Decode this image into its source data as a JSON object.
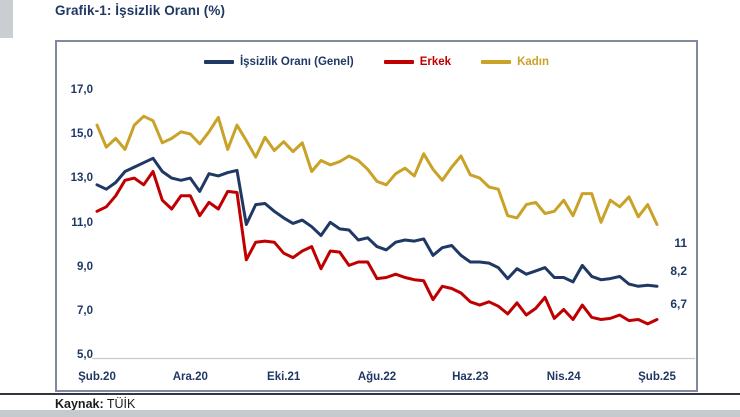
{
  "title": "Grafik-1: İşsizlik Oranı (%)",
  "source": {
    "label": "Kaynak:",
    "value": "TÜİK"
  },
  "colors": {
    "general": "#1F3864",
    "male": "#C00000",
    "female": "#C9A227",
    "axis_text": "#1F3864",
    "box_border": "#7f8b9c",
    "baseline": "#c9c9c9"
  },
  "chart_data": {
    "type": "line",
    "title": "Grafik-1: İşsizlik Oranı (%)",
    "frequency": "monthly",
    "x_tick_labels": [
      "Şub.20",
      "Ara.20",
      "Eki.21",
      "Ağu.22",
      "Haz.23",
      "Nis.24",
      "Şub.25"
    ],
    "x_tick_interval_points": 10,
    "y_tick_labels": [
      "17,0",
      "15,0",
      "13,0",
      "11,0",
      "9,0",
      "7,0",
      "5,0"
    ],
    "ylim": [
      5,
      17
    ],
    "grid": false,
    "legend_position": "top",
    "series": [
      {
        "name": "İşsizlik Oranı (Genel)",
        "color": "#1F3864",
        "end_label": "8,2",
        "values": [
          12.8,
          12.6,
          12.9,
          13.4,
          13.6,
          13.8,
          14.0,
          13.4,
          13.1,
          13.0,
          13.1,
          12.5,
          13.3,
          13.2,
          13.35,
          13.45,
          11.0,
          11.9,
          11.95,
          11.6,
          11.3,
          11.05,
          11.2,
          10.9,
          10.5,
          11.1,
          10.8,
          10.75,
          10.3,
          10.4,
          10.0,
          9.85,
          10.2,
          10.3,
          10.25,
          10.35,
          9.6,
          9.95,
          10.05,
          9.6,
          9.3,
          9.3,
          9.25,
          9.05,
          8.55,
          9.0,
          8.75,
          8.9,
          9.05,
          8.6,
          8.6,
          8.4,
          9.15,
          8.65,
          8.5,
          8.55,
          8.65,
          8.3,
          8.2,
          8.25,
          8.2
        ]
      },
      {
        "name": "Erkek",
        "color": "#C00000",
        "end_label": "6,7",
        "values": [
          11.6,
          11.8,
          12.3,
          13.0,
          13.1,
          12.8,
          13.4,
          12.1,
          11.7,
          12.3,
          12.3,
          11.4,
          12.0,
          11.7,
          12.5,
          12.45,
          9.4,
          10.2,
          10.25,
          10.2,
          9.7,
          9.5,
          9.8,
          10.0,
          9.0,
          9.8,
          9.75,
          9.15,
          9.3,
          9.3,
          8.55,
          8.6,
          8.75,
          8.6,
          8.5,
          8.45,
          7.6,
          8.2,
          8.1,
          7.9,
          7.5,
          7.35,
          7.5,
          7.3,
          6.95,
          7.45,
          6.9,
          7.2,
          7.7,
          6.75,
          7.15,
          6.7,
          7.35,
          6.8,
          6.7,
          6.75,
          6.9,
          6.65,
          6.7,
          6.5,
          6.7
        ]
      },
      {
        "name": "Kadın",
        "color": "#C9A227",
        "end_label": "11",
        "values": [
          15.5,
          14.5,
          14.9,
          14.4,
          15.5,
          15.9,
          15.7,
          14.7,
          14.9,
          15.2,
          15.1,
          14.65,
          15.2,
          15.85,
          14.4,
          15.5,
          14.8,
          14.05,
          14.95,
          14.35,
          14.75,
          14.3,
          14.7,
          13.4,
          13.9,
          13.7,
          13.85,
          14.1,
          13.9,
          13.5,
          12.95,
          12.8,
          13.3,
          13.55,
          13.2,
          14.2,
          13.5,
          13.0,
          13.6,
          14.1,
          13.25,
          13.1,
          12.7,
          12.6,
          11.4,
          11.3,
          11.9,
          12.0,
          11.5,
          11.6,
          12.1,
          11.4,
          12.4,
          12.4,
          11.1,
          12.1,
          11.8,
          12.25,
          11.35,
          11.9,
          11.0
        ]
      }
    ]
  }
}
